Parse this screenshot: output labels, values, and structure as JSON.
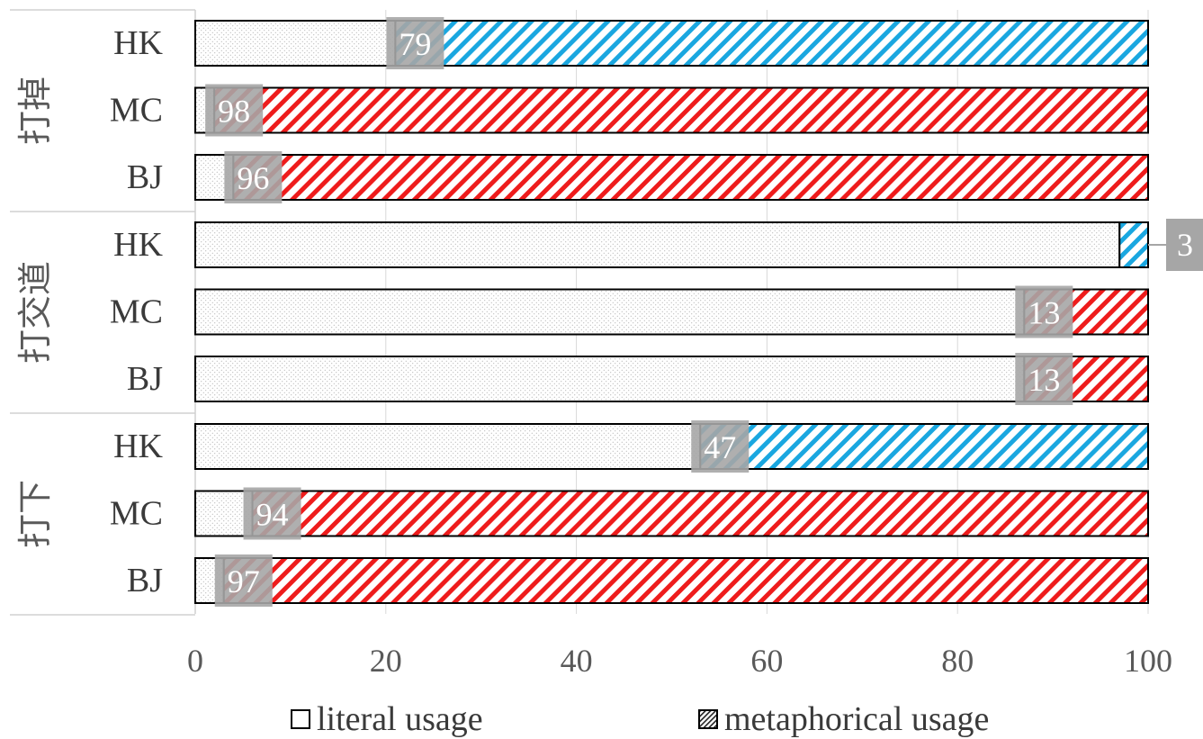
{
  "chart_data": {
    "type": "bar",
    "orientation": "horizontal",
    "stacked": true,
    "xlim": [
      0,
      100
    ],
    "x_ticks": [
      "0",
      "20",
      "40",
      "60",
      "80",
      "100"
    ],
    "grid": true,
    "legend_position": "bottom",
    "groups": [
      {
        "label": "打掉",
        "bars": [
          {
            "label": "HK",
            "literal": 21,
            "metaphorical": 79,
            "metaphorical_label": "79",
            "region": "HK"
          },
          {
            "label": "MC",
            "literal": 2,
            "metaphorical": 98,
            "metaphorical_label": "98",
            "region": "MC"
          },
          {
            "label": "BJ",
            "literal": 4,
            "metaphorical": 96,
            "metaphorical_label": "96",
            "region": "BJ"
          }
        ]
      },
      {
        "label": "打交道",
        "bars": [
          {
            "label": "HK",
            "literal": 97,
            "metaphorical": 3,
            "metaphorical_label": "3",
            "region": "HK"
          },
          {
            "label": "MC",
            "literal": 87,
            "metaphorical": 13,
            "metaphorical_label": "13",
            "region": "MC"
          },
          {
            "label": "BJ",
            "literal": 87,
            "metaphorical": 13,
            "metaphorical_label": "13",
            "region": "BJ"
          }
        ]
      },
      {
        "label": "打下",
        "bars": [
          {
            "label": "HK",
            "literal": 53,
            "metaphorical": 47,
            "metaphorical_label": "47",
            "region": "HK"
          },
          {
            "label": "MC",
            "literal": 6,
            "metaphorical": 94,
            "metaphorical_label": "94",
            "region": "MC"
          },
          {
            "label": "BJ",
            "literal": 3,
            "metaphorical": 97,
            "metaphorical_label": "97",
            "region": "BJ"
          }
        ]
      }
    ],
    "series": [
      {
        "name": "literal usage",
        "pattern": "dots"
      },
      {
        "name": "metaphorical usage",
        "pattern": "diagonal-stripes"
      }
    ],
    "colors": {
      "hk_stripe": "#1aa7e0",
      "other_stripe": "#ee1c1c",
      "dots": "#9a9a9a",
      "label_box": "#a6a6a6",
      "grid": "#d9d9d9",
      "axis_text": "#595959"
    }
  }
}
